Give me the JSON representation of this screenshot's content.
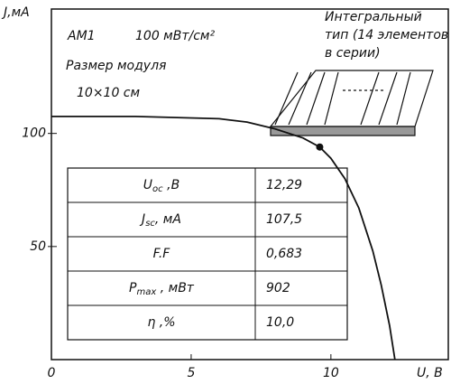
{
  "chart_data": {
    "type": "line",
    "x_label": "U, В",
    "y_label": "J,мА",
    "x": [
      0,
      3,
      6,
      7,
      8,
      9,
      9.6,
      10,
      10.5,
      11,
      11.5,
      11.8,
      12.1,
      12.29
    ],
    "series": [
      {
        "color": "#111111",
        "values": [
          107.5,
          107.5,
          106.5,
          105,
          102,
          98,
          94,
          89,
          80,
          67,
          48,
          33,
          15,
          0
        ]
      }
    ],
    "marker": {
      "x": 9.6,
      "y": 94
    },
    "xlim": [
      0,
      14.2
    ],
    "ylim": [
      0,
      155
    ],
    "xticks": [
      0,
      5,
      10
    ],
    "yticks": [
      50,
      100
    ],
    "annotations": {
      "spectrum": "AM1",
      "intensity": "100 мВт/см²",
      "size_title": "Размер модуля",
      "size": "10×10 см",
      "type_lines": [
        "Интегральный",
        "тип (14 элементов",
        "в серии)"
      ]
    },
    "table": {
      "rows": [
        {
          "symbol": "U",
          "sub": "oc",
          "unit": " ,В",
          "value": "12,29"
        },
        {
          "symbol": "J",
          "sub": "sc",
          "unit": ", мА",
          "value": "107,5"
        },
        {
          "symbol": "F.F",
          "value": "0,683"
        },
        {
          "symbol": "P",
          "sub": "max",
          "unit": " , мВт",
          "value": "902"
        },
        {
          "symbol": "η",
          "unit": " ,%",
          "value": "10,0"
        }
      ]
    }
  }
}
